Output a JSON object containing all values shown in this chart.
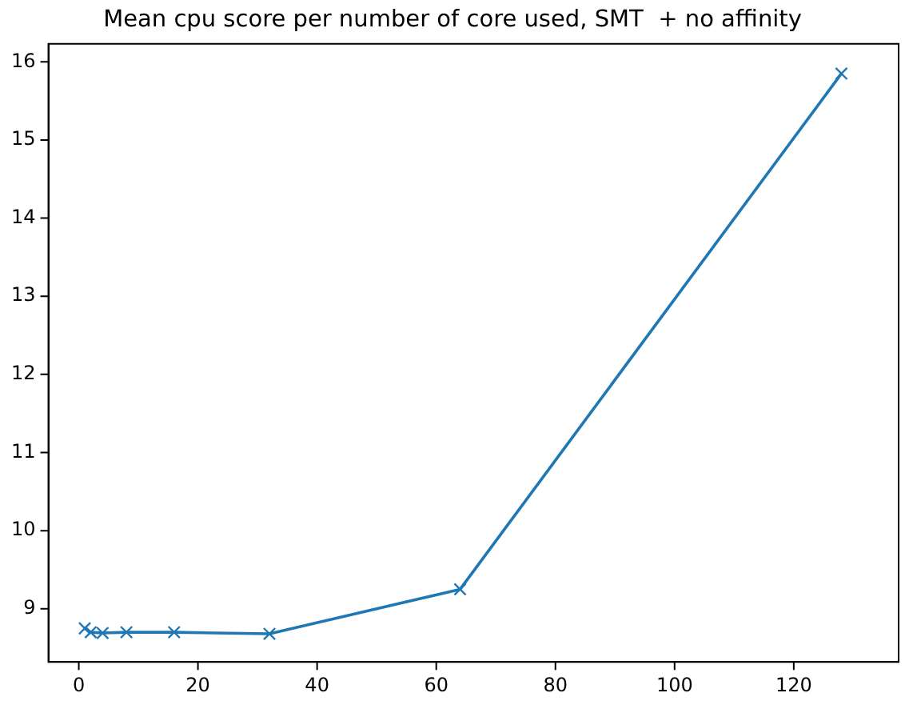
{
  "chart_data": {
    "type": "line",
    "title": "Mean cpu score per number of core used, SMT  + no affinity",
    "x": [
      1,
      2,
      4,
      8,
      16,
      32,
      64,
      128
    ],
    "series": [
      {
        "color": "#1f77b4",
        "values": [
          8.75,
          8.7,
          8.69,
          8.7,
          8.7,
          8.68,
          9.25,
          15.85
        ]
      }
    ],
    "xlim": [
      -5.1,
      137.6
    ],
    "xticks": [
      0,
      20,
      40,
      60,
      80,
      100,
      120
    ],
    "ylim": [
      8.32,
      16.23
    ],
    "yticks": [
      9,
      10,
      11,
      12,
      13,
      14,
      15,
      16
    ],
    "marker": "cross",
    "line_style": "solid",
    "grid": false,
    "legend": false
  }
}
